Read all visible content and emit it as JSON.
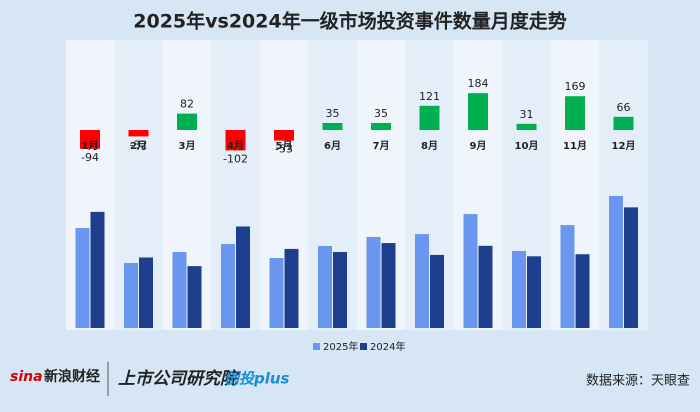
{
  "chart_data": [
    {
      "type": "diff-bar",
      "title": "2025年vs2024年一级市场投资事件数量月度走势",
      "categories": [
        "1月",
        "2月",
        "3月",
        "4月",
        "5月",
        "6月",
        "7月",
        "8月",
        "9月",
        "10月",
        "11月",
        "12月"
      ],
      "values": [
        -94,
        -32,
        82,
        -102,
        -53,
        35,
        35,
        121,
        184,
        31,
        169,
        66
      ],
      "colors": {
        "positive": "#00b050",
        "negative": "#ff0000"
      }
    },
    {
      "type": "grouped-bar",
      "series": [
        {
          "name": "2025年",
          "color": "#6996ee",
          "values": [
            580,
            377,
            441,
            487,
            406,
            476,
            528,
            545,
            661,
            447,
            597,
            766
          ]
        },
        {
          "name": "2024年",
          "color": "#1d3f8e",
          "values": [
            674,
            409,
            359,
            589,
            459,
            441,
            493,
            424,
            477,
            416,
            428,
            700
          ]
        }
      ]
    }
  ],
  "footer": {
    "brand": "新浪财经",
    "institute": "上市公司研究院",
    "plus": "创投plus",
    "source": "数据来源：天眼查"
  }
}
